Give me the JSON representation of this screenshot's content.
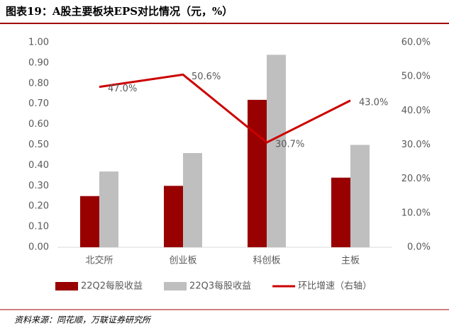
{
  "title": "图表19：A股主要板块EPS对比情况（元，%）",
  "source": "资料来源：同花顺，万联证券研究所",
  "chart_data": {
    "type": "bar",
    "categories": [
      "北交所",
      "创业板",
      "科创板",
      "主板"
    ],
    "series": [
      {
        "name": "22Q2每股收益",
        "color": "#990000",
        "values": [
          0.25,
          0.3,
          0.72,
          0.34
        ]
      },
      {
        "name": "22Q3每股收益",
        "color": "#bfbfbf",
        "values": [
          0.37,
          0.46,
          0.94,
          0.5
        ]
      },
      {
        "name": "环比增速（右轴）",
        "color": "#cc0000",
        "type": "line",
        "axis": "y2",
        "values": [
          47.0,
          50.6,
          30.7,
          43.0
        ],
        "value_labels": [
          "47.0%",
          "50.6%",
          "30.7%",
          "43.0%"
        ]
      }
    ],
    "ylim": [
      0,
      1
    ],
    "yticks": [
      {
        "value": 0,
        "label": "0.00"
      },
      {
        "value": 0.1,
        "label": "0.10"
      },
      {
        "value": 0.2,
        "label": "0.20"
      },
      {
        "value": 0.3,
        "label": "0.30"
      },
      {
        "value": 0.4,
        "label": "0.40"
      },
      {
        "value": 0.5,
        "label": "0.50"
      },
      {
        "value": 0.6,
        "label": "0.60"
      },
      {
        "value": 0.7,
        "label": "0.70"
      },
      {
        "value": 0.8,
        "label": "0.80"
      },
      {
        "value": 0.9,
        "label": "0.90"
      },
      {
        "value": 1,
        "label": "1.00"
      }
    ],
    "y2lim": [
      0,
      60
    ],
    "y2ticks": [
      {
        "value": 0,
        "label": "0.0%"
      },
      {
        "value": 10,
        "label": "10.0%"
      },
      {
        "value": 20,
        "label": "20.0%"
      },
      {
        "value": 30,
        "label": "30.0%"
      },
      {
        "value": 40,
        "label": "40.0%"
      },
      {
        "value": 50,
        "label": "50.0%"
      },
      {
        "value": 60,
        "label": "60.0%"
      }
    ],
    "grid": false
  }
}
